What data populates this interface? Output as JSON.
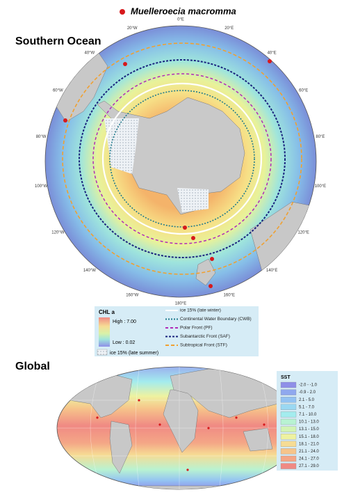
{
  "species": {
    "name": "Muelleroecia macromma",
    "color": "#d7191c"
  },
  "southern_ocean": {
    "title": "Southern Ocean",
    "longitude_labels": [
      "0°E",
      "20°E",
      "40°E",
      "60°E",
      "80°E",
      "100°E",
      "120°E",
      "140°E",
      "160°E",
      "180°E",
      "160°W",
      "140°W",
      "120°W",
      "100°W",
      "80°W",
      "60°W",
      "40°W",
      "20°W"
    ],
    "legend": {
      "chl_title": "CHL a",
      "chl_high": "High : 7.00",
      "chl_low": "Low : 0.02",
      "ice_summer": "ice 15% (late summer)",
      "lines": [
        {
          "label": "ice 15% (late winter)",
          "color": "#ffffff"
        },
        {
          "label": "Continental Water Boundary (CWB)",
          "color": "#1f7a8c"
        },
        {
          "label": "Polar Front (PF)",
          "color": "#b02ab8"
        },
        {
          "label": "Subantarctic Front (SAF)",
          "color": "#1a237e"
        },
        {
          "label": "Subtropical Front (STF)",
          "color": "#f0a030"
        }
      ]
    }
  },
  "global": {
    "title": "Global",
    "sst_legend": {
      "title": "SST",
      "classes": [
        {
          "label": "-2.0 - -1.0",
          "color": "#8f8fe8"
        },
        {
          "label": "-0.9 - 2.0",
          "color": "#8fa8ee"
        },
        {
          "label": "2.1 - 5.0",
          "color": "#93c2f2"
        },
        {
          "label": "5.1 - 7.0",
          "color": "#9ad8f2"
        },
        {
          "label": "7.1 - 10.0",
          "color": "#a3ecee"
        },
        {
          "label": "10.1 - 13.0",
          "color": "#b8f2d2"
        },
        {
          "label": "13.1 - 15.0",
          "color": "#d2f4b4"
        },
        {
          "label": "15.1 - 18.0",
          "color": "#eef2a0"
        },
        {
          "label": "18.1 - 21.0",
          "color": "#f6dc94"
        },
        {
          "label": "21.1 - 24.0",
          "color": "#f6c48a"
        },
        {
          "label": "24.1 - 27.0",
          "color": "#f4a686"
        },
        {
          "label": "27.1 - 29.0",
          "color": "#f08a84"
        }
      ]
    }
  }
}
